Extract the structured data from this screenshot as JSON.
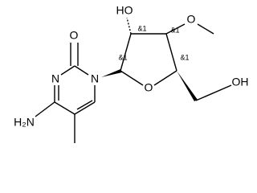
{
  "atoms": {
    "carbonyl_o": "O",
    "n3": "N",
    "n1": "N",
    "amine": "H₂N",
    "hydroxyl_2": "HO",
    "methoxy_o": "O",
    "ring_o": "O",
    "hydroxyl_5": "OH"
  },
  "stereo": {
    "c1": "&1",
    "c2": "&1",
    "c3": "&1",
    "c4": "&1"
  }
}
